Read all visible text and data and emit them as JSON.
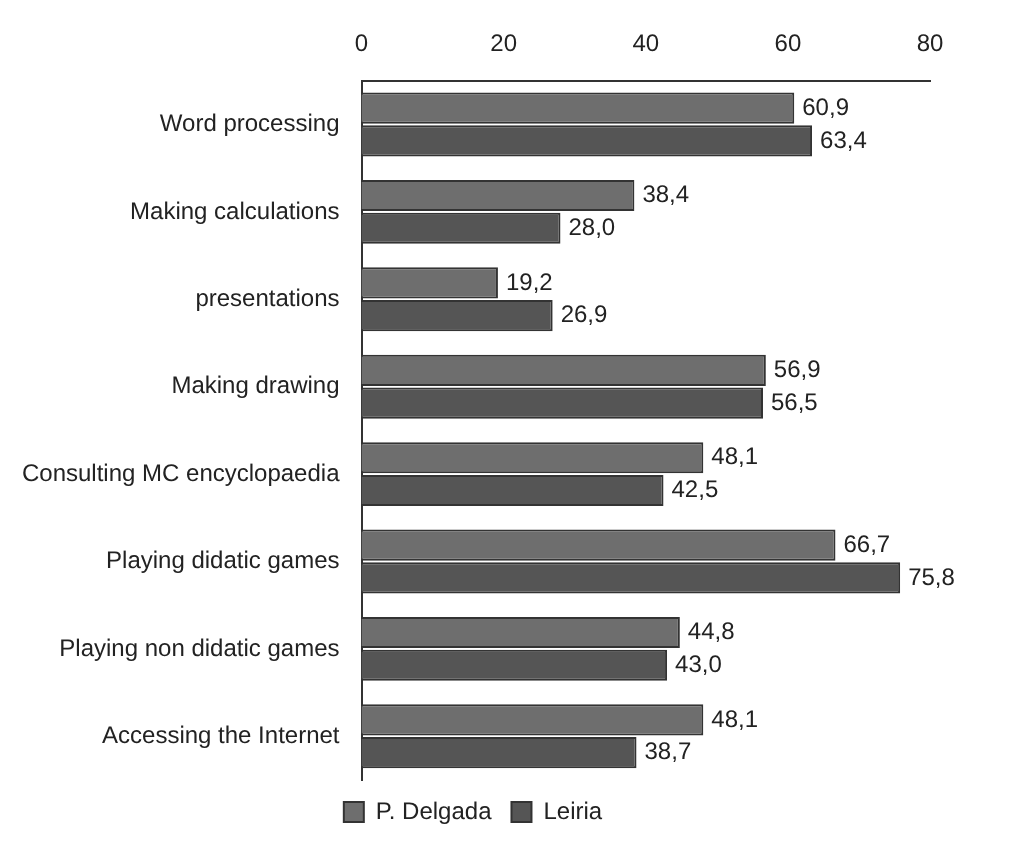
{
  "chart_data": {
    "type": "bar",
    "orientation": "horizontal",
    "categories": [
      "Word processing",
      "Making calculations",
      "presentations",
      "Making drawing",
      "Consulting MC encyclopaedia",
      "Playing didatic games",
      "Playing non didatic games",
      "Accessing the Internet"
    ],
    "series": [
      {
        "name": "P. Delgada",
        "color": "#6e6e6e",
        "values": [
          60.9,
          38.4,
          19.2,
          56.9,
          48.1,
          66.7,
          44.8,
          48.1
        ],
        "value_labels": [
          "60,9",
          "38,4",
          "19,2",
          "56,9",
          "48,1",
          "66,7",
          "44,8",
          "48,1"
        ]
      },
      {
        "name": "Leiria",
        "color": "#555555",
        "values": [
          63.4,
          28.0,
          26.9,
          56.5,
          42.5,
          75.8,
          43.0,
          38.7
        ],
        "value_labels": [
          "63,4",
          "28,0",
          "26,9",
          "56,5",
          "42,5",
          "75,8",
          "43,0",
          "38,7"
        ]
      }
    ],
    "xlim": [
      0,
      80
    ],
    "xticks": [
      0,
      20,
      40,
      60,
      80
    ],
    "grid": false,
    "legend": "bottom"
  }
}
